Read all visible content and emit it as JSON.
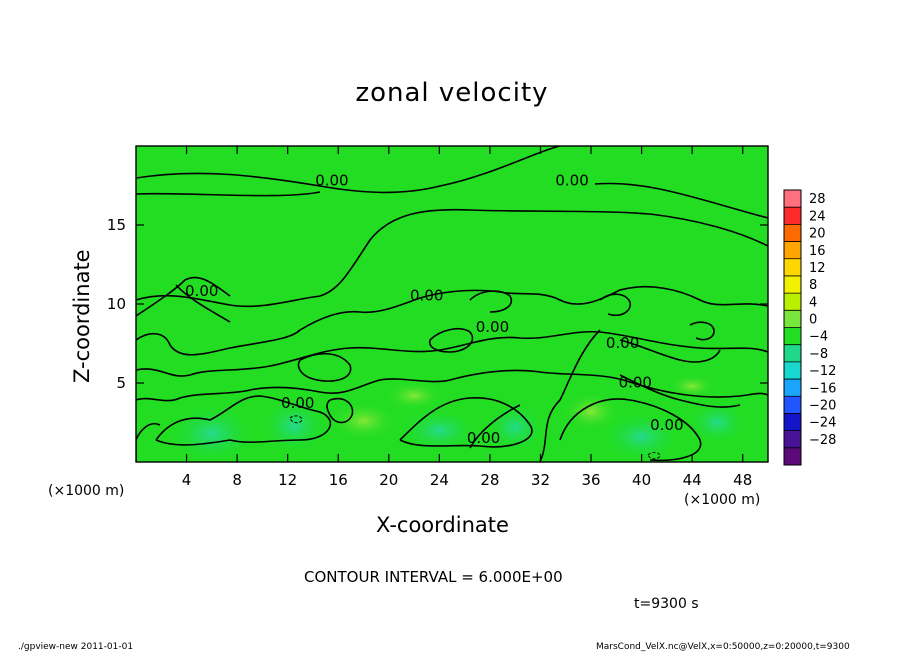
{
  "chart_data": {
    "type": "heatmap",
    "title": "zonal velocity",
    "xlabel": "X-coordinate",
    "ylabel": "Z-coordinate",
    "x_unit_left": "(×1000 m)",
    "x_unit_right": "(×1000 m)",
    "xlim": [
      0,
      50
    ],
    "ylim": [
      0,
      20
    ],
    "x_ticks": [
      4,
      8,
      12,
      16,
      20,
      24,
      28,
      32,
      36,
      40,
      44,
      48
    ],
    "y_ticks": [
      5,
      10,
      15
    ],
    "colorbar": {
      "levels": [
        28,
        24,
        20,
        16,
        12,
        8,
        4,
        0,
        -4,
        -8,
        -12,
        -16,
        -20,
        -24,
        -28
      ],
      "labels": [
        "28",
        "24",
        "20",
        "16",
        "12",
        "8",
        "4",
        "0",
        "−4",
        "−8",
        "−12",
        "−16",
        "−20",
        "−24",
        "−28"
      ],
      "colors": [
        "#ff6f7e",
        "#ff2a2a",
        "#ff6a00",
        "#ffa500",
        "#ffd700",
        "#f2f200",
        "#b8f000",
        "#78e63c",
        "#22dd22",
        "#20d88a",
        "#18d8d0",
        "#1aa6ff",
        "#2055ff",
        "#1414c8",
        "#4a1296",
        "#5c0a7a"
      ]
    },
    "background_color": "#22dd22",
    "contour_labels": [
      {
        "text": "0.00",
        "x": 15.5,
        "y": 17.8
      },
      {
        "text": "0.00",
        "x": 34.5,
        "y": 17.8
      },
      {
        "text": "0.00",
        "x": 5.2,
        "y": 10.8
      },
      {
        "text": "0.00",
        "x": 23.0,
        "y": 10.5
      },
      {
        "text": "0.00",
        "x": 28.2,
        "y": 8.5
      },
      {
        "text": "0.00",
        "x": 38.5,
        "y": 7.5
      },
      {
        "text": "0.00",
        "x": 39.5,
        "y": 5.0
      },
      {
        "text": "0.00",
        "x": 12.8,
        "y": 3.7
      },
      {
        "text": "0.00",
        "x": 27.5,
        "y": 1.5
      },
      {
        "text": "0.00",
        "x": 42.0,
        "y": 2.3
      }
    ]
  },
  "contour_interval": "CONTOUR INTERVAL = 6.000E+00",
  "time_label": "t=9300 s",
  "footer_left": "./gpview-new   2011-01-01",
  "footer_right": "MarsCond_VelX.nc@VelX,x=0:50000,z=0:20000,t=9300"
}
